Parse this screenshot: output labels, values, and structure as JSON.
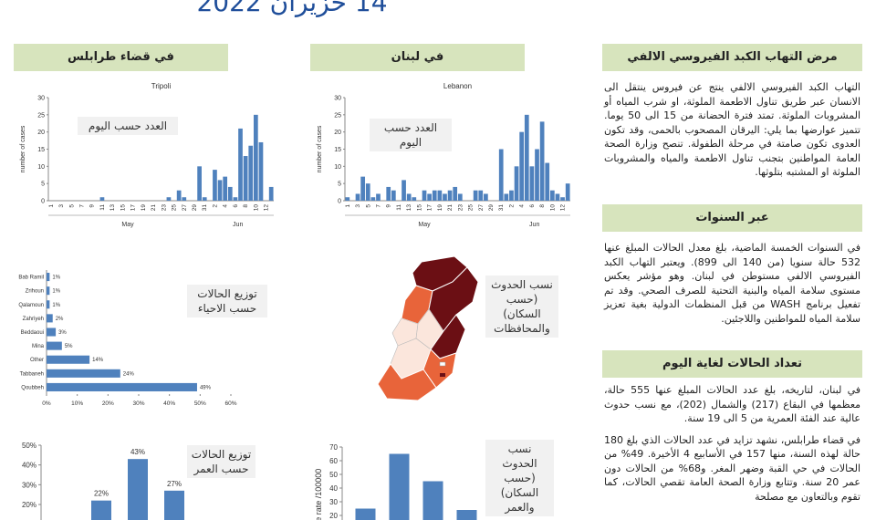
{
  "header": {
    "title": "14 حزيران 2022"
  },
  "columns": {
    "tripoli": "في قضاء طرابلس",
    "lebanon": "في لبنان"
  },
  "charts": [
    {
      "type": "daily",
      "title": "Tripoli",
      "ylabel": "number of cases",
      "caption": "العدد حسب اليوم",
      "months": [
        "May",
        "Jun"
      ],
      "categories": [
        "1",
        null,
        "3",
        null,
        "5",
        null,
        "7",
        null,
        "9",
        null,
        "11",
        null,
        "13",
        null,
        "15",
        null,
        "17",
        null,
        "19",
        null,
        "21",
        null,
        "23",
        null,
        "25",
        null,
        "27",
        null,
        "29",
        null,
        "31",
        null,
        "2",
        null,
        "4",
        null,
        "6",
        null,
        "8",
        null,
        "10",
        null,
        "12",
        null
      ],
      "values": [
        0,
        0,
        0,
        0,
        0,
        0,
        0,
        0,
        0,
        0,
        1,
        0,
        0,
        0,
        0,
        0,
        0,
        0,
        0,
        0,
        0,
        0,
        0,
        1,
        0,
        3,
        1,
        0,
        0,
        10,
        1,
        0,
        9,
        6,
        7,
        4,
        1,
        21,
        13,
        16,
        25,
        17,
        0,
        4
      ],
      "ylim": [
        0,
        30
      ],
      "yticks": [
        0,
        5,
        10,
        15,
        20,
        25,
        30
      ],
      "color": "#4f81bd"
    },
    {
      "type": "daily",
      "title": "Lebanon",
      "ylabel": "number of cases",
      "caption": "العدد حسب اليوم",
      "months": [
        "May",
        "Jun"
      ],
      "categories": [
        "1",
        null,
        "3",
        null,
        "5",
        null,
        "7",
        null,
        "9",
        null,
        "11",
        null,
        "13",
        null,
        "15",
        null,
        "17",
        null,
        "19",
        null,
        "21",
        null,
        "23",
        null,
        "25",
        null,
        "27",
        null,
        "29",
        null,
        "31",
        null,
        "2",
        null,
        "4",
        null,
        "6",
        null,
        "8",
        null,
        "10",
        null,
        "12",
        null
      ],
      "values": [
        1,
        0,
        2,
        7,
        5,
        1,
        2,
        0,
        4,
        3,
        0,
        6,
        2,
        1,
        0,
        3,
        2,
        3,
        3,
        2,
        3,
        4,
        2,
        0,
        0,
        3,
        3,
        2,
        0,
        0,
        15,
        2,
        3,
        10,
        20,
        25,
        10,
        15,
        23,
        11,
        3,
        2,
        1,
        5
      ],
      "ylim": [
        0,
        30
      ],
      "yticks": [
        0,
        5,
        10,
        15,
        20,
        25,
        30
      ],
      "color": "#4f81bd"
    },
    {
      "type": "hbar",
      "caption": "توزيع الحالات حسب الاحياء",
      "categories": [
        "Bab Ramil",
        "Zrihoun",
        "Qalamoun",
        "Zahriyeh",
        "Beddaoui",
        "Mina",
        "Other",
        "Tabbaneh",
        "Qoubbeh"
      ],
      "values": [
        1,
        1,
        1,
        2,
        3,
        5,
        14,
        24,
        49
      ],
      "value_labels": [
        "1%",
        "1%",
        "1%",
        "2%",
        "3%",
        "5%",
        "14%",
        "24%",
        "49%"
      ],
      "xlim": [
        0,
        60
      ],
      "xticks": [
        {
          "value": 0,
          "label": "0%"
        },
        {
          "value": 10,
          "label": "10%"
        },
        {
          "value": 20,
          "label": "20%"
        },
        {
          "value": 30,
          "label": "30%"
        },
        {
          "value": 40,
          "label": "40%"
        },
        {
          "value": 50,
          "label": "50%"
        },
        {
          "value": 60,
          "label": "60%"
        }
      ],
      "color": "#4f81bd"
    },
    {
      "type": "bar",
      "caption": "توزيع الحالات حسب العمر",
      "categories": [
        null,
        null,
        null
      ],
      "values": [
        22,
        43,
        27
      ],
      "value_labels": [
        "22%",
        "43%",
        "27%"
      ],
      "ylim": [
        0,
        50
      ],
      "yticks": [
        {
          "value": 20,
          "label": "20%"
        },
        {
          "value": 30,
          "label": "30%"
        },
        {
          "value": 40,
          "label": "40%"
        },
        {
          "value": 50,
          "label": "50%"
        }
      ],
      "color": "#4f81bd"
    },
    {
      "type": "bar",
      "caption": "نسب الحدوث (حسب السكان) والعمر",
      "ylabel": "ence rate /100000",
      "categories": [
        null,
        null,
        null,
        null
      ],
      "values": [
        25,
        65,
        45,
        24
      ],
      "ylim": [
        0,
        70
      ],
      "yticks": [
        20,
        30,
        40,
        50,
        60,
        70
      ],
      "color": "#4f81bd"
    }
  ],
  "map": {
    "caption": "نسب الحدوث (حسب السكان) والمحافظات"
  },
  "sections": [
    {
      "heading": "مرض التهاب الكبد الفيروسي الالفي",
      "paragraphs": [
        "التهاب الكبد الفيروسي الالفي ينتج عن فيروس ينتقل الى الانسان عبر طريق تناول الاطعمة الملوثة، او شرب المياه أو المشروبات الملوثة. تمتد فترة الحضانة من 15 الى 50 يوما. تتميز عوارضها بما يلي: اليرقان المصحوب بالحمى، وقد تكون العدوى تكون صامتة في مرحلة الطفولة. تنصح وزارة الصحة العامة المواطنين بتجنب تناول الاطعمة والمياه والمشروبات الملوثة او المشتبه بتلوثها."
      ]
    },
    {
      "heading": "عبر السنوات",
      "paragraphs": [
        "في السنوات الخمسة الماضية، بلغ معدل الحالات المبلغ عنها 532 حالة سنويا (من 140 الى 899). ويعتبر التهاب الكبد الفيروسي الالفي مستوطن في لبنان. وهو مؤشر يعكس مستوى سلامة المياه والبنية التحتية للصرف الصحي. وقد تم تفعيل برنامج WASH من قبل المنظمات الدولية بغية تعزيز سلامة المياه للمواطنين واللاجئين."
      ]
    },
    {
      "heading": "تعداد الحالات لغاية اليوم",
      "paragraphs": [
        "في لبنان، لتاريخه، بلغ عدد الحالات المبلغ عنها 555 حالة، معظمها في البقاع (217) والشمال (202)، مع نسب حدوث عالية عند الفئة العمرية من 5 الى 19 سنة.",
        "في قضاء طرابلس، نشهد تزايد في عدد الحالات الذي بلغ 180 حالة لهذه السنة، منها 157 في الأسابيع 4 الأخيرة. 49% من الحالات في حي القبة وضهر المغر. و68% من الحالات دون عمر 20 سنة. وتتابع وزارة الصحة العامة تقصي الحالات، كما تقوم وبالتعاون مع مصلحة"
      ]
    }
  ]
}
